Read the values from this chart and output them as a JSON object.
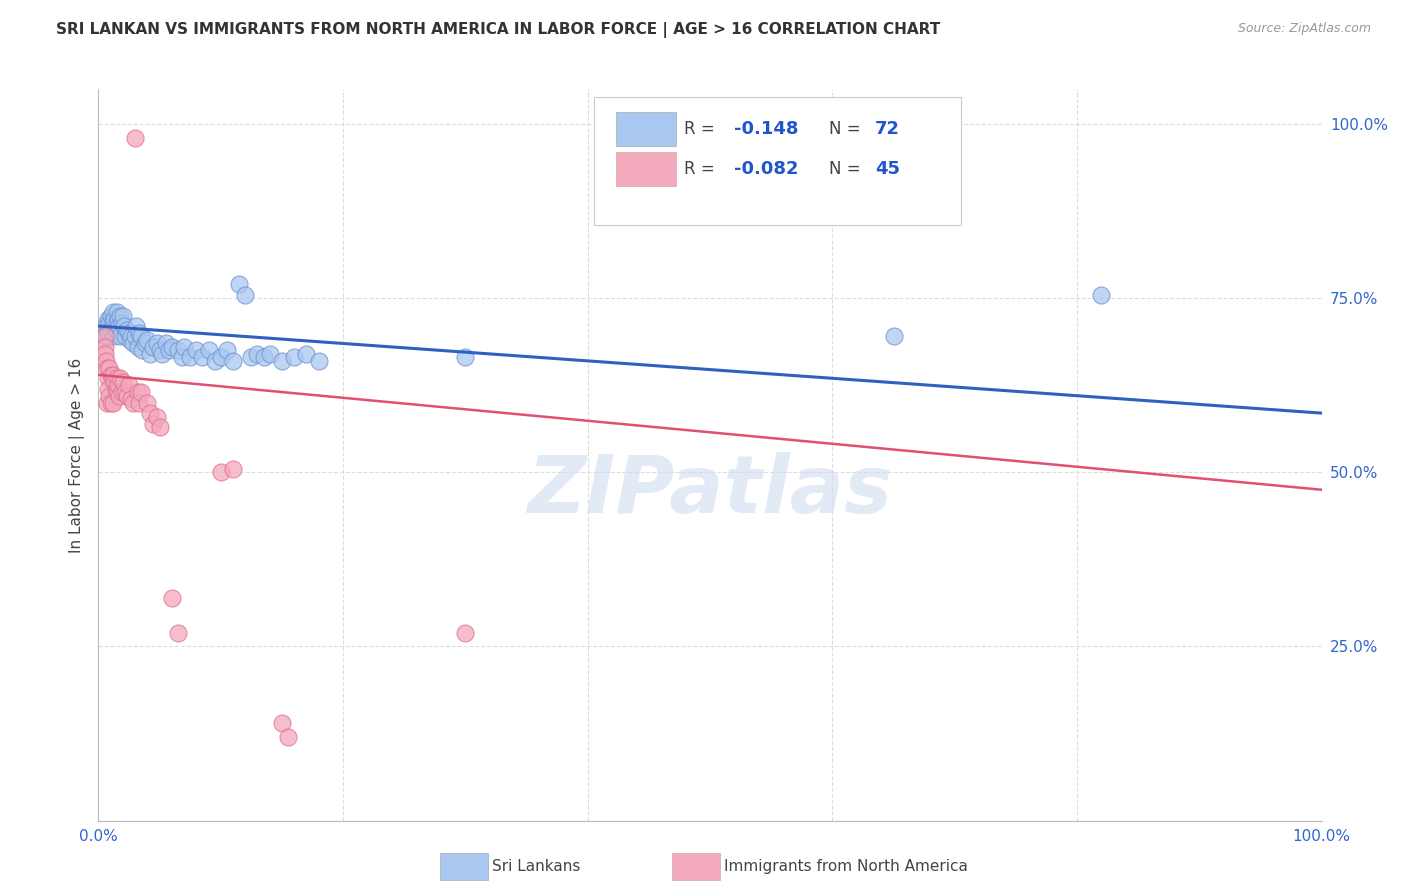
{
  "title": "SRI LANKAN VS IMMIGRANTS FROM NORTH AMERICA IN LABOR FORCE | AGE > 16 CORRELATION CHART",
  "source": "Source: ZipAtlas.com",
  "ylabel": "In Labor Force | Age > 16",
  "legend_blue_R": "-0.148",
  "legend_blue_N": "72",
  "legend_pink_R": "-0.082",
  "legend_pink_N": "45",
  "legend_label_blue": "Sri Lankans",
  "legend_label_pink": "Immigrants from North America",
  "blue_color": "#A8C8F0",
  "pink_color": "#F4A8BC",
  "blue_edge_color": "#7090D0",
  "pink_edge_color": "#E07090",
  "blue_line_color": "#3060C0",
  "pink_line_color": "#E05070",
  "watermark": "ZIPatlas",
  "blue_scatter": [
    [
      0.005,
      0.69
    ],
    [
      0.006,
      0.7
    ],
    [
      0.007,
      0.715
    ],
    [
      0.007,
      0.695
    ],
    [
      0.008,
      0.72
    ],
    [
      0.008,
      0.705
    ],
    [
      0.009,
      0.715
    ],
    [
      0.009,
      0.7
    ],
    [
      0.01,
      0.725
    ],
    [
      0.01,
      0.705
    ],
    [
      0.011,
      0.715
    ],
    [
      0.012,
      0.73
    ],
    [
      0.012,
      0.71
    ],
    [
      0.013,
      0.72
    ],
    [
      0.013,
      0.695
    ],
    [
      0.014,
      0.705
    ],
    [
      0.015,
      0.73
    ],
    [
      0.015,
      0.715
    ],
    [
      0.016,
      0.72
    ],
    [
      0.016,
      0.705
    ],
    [
      0.017,
      0.71
    ],
    [
      0.018,
      0.725
    ],
    [
      0.018,
      0.695
    ],
    [
      0.019,
      0.715
    ],
    [
      0.02,
      0.725
    ],
    [
      0.021,
      0.71
    ],
    [
      0.022,
      0.695
    ],
    [
      0.023,
      0.705
    ],
    [
      0.025,
      0.7
    ],
    [
      0.026,
      0.69
    ],
    [
      0.027,
      0.695
    ],
    [
      0.028,
      0.685
    ],
    [
      0.03,
      0.695
    ],
    [
      0.031,
      0.71
    ],
    [
      0.032,
      0.68
    ],
    [
      0.033,
      0.7
    ],
    [
      0.035,
      0.695
    ],
    [
      0.036,
      0.675
    ],
    [
      0.038,
      0.685
    ],
    [
      0.04,
      0.69
    ],
    [
      0.042,
      0.67
    ],
    [
      0.045,
      0.68
    ],
    [
      0.048,
      0.685
    ],
    [
      0.05,
      0.675
    ],
    [
      0.052,
      0.67
    ],
    [
      0.055,
      0.685
    ],
    [
      0.058,
      0.675
    ],
    [
      0.06,
      0.68
    ],
    [
      0.065,
      0.675
    ],
    [
      0.068,
      0.665
    ],
    [
      0.07,
      0.68
    ],
    [
      0.075,
      0.665
    ],
    [
      0.08,
      0.675
    ],
    [
      0.085,
      0.665
    ],
    [
      0.09,
      0.675
    ],
    [
      0.095,
      0.66
    ],
    [
      0.1,
      0.665
    ],
    [
      0.105,
      0.675
    ],
    [
      0.11,
      0.66
    ],
    [
      0.115,
      0.77
    ],
    [
      0.12,
      0.755
    ],
    [
      0.125,
      0.665
    ],
    [
      0.13,
      0.67
    ],
    [
      0.135,
      0.665
    ],
    [
      0.14,
      0.67
    ],
    [
      0.15,
      0.66
    ],
    [
      0.16,
      0.665
    ],
    [
      0.17,
      0.67
    ],
    [
      0.18,
      0.66
    ],
    [
      0.3,
      0.665
    ],
    [
      0.65,
      0.695
    ],
    [
      0.82,
      0.755
    ]
  ],
  "pink_scatter": [
    [
      0.005,
      0.695
    ],
    [
      0.005,
      0.68
    ],
    [
      0.005,
      0.67
    ],
    [
      0.006,
      0.66
    ],
    [
      0.007,
      0.65
    ],
    [
      0.007,
      0.6
    ],
    [
      0.008,
      0.635
    ],
    [
      0.008,
      0.62
    ],
    [
      0.009,
      0.65
    ],
    [
      0.009,
      0.61
    ],
    [
      0.01,
      0.64
    ],
    [
      0.01,
      0.6
    ],
    [
      0.011,
      0.635
    ],
    [
      0.012,
      0.64
    ],
    [
      0.012,
      0.6
    ],
    [
      0.013,
      0.63
    ],
    [
      0.014,
      0.62
    ],
    [
      0.015,
      0.635
    ],
    [
      0.015,
      0.615
    ],
    [
      0.016,
      0.625
    ],
    [
      0.017,
      0.61
    ],
    [
      0.018,
      0.635
    ],
    [
      0.019,
      0.615
    ],
    [
      0.02,
      0.63
    ],
    [
      0.022,
      0.615
    ],
    [
      0.023,
      0.61
    ],
    [
      0.025,
      0.625
    ],
    [
      0.027,
      0.605
    ],
    [
      0.028,
      0.6
    ],
    [
      0.03,
      0.98
    ],
    [
      0.032,
      0.615
    ],
    [
      0.033,
      0.6
    ],
    [
      0.035,
      0.615
    ],
    [
      0.04,
      0.6
    ],
    [
      0.042,
      0.585
    ],
    [
      0.045,
      0.57
    ],
    [
      0.048,
      0.58
    ],
    [
      0.05,
      0.565
    ],
    [
      0.06,
      0.32
    ],
    [
      0.065,
      0.27
    ],
    [
      0.1,
      0.5
    ],
    [
      0.11,
      0.505
    ],
    [
      0.15,
      0.14
    ],
    [
      0.155,
      0.12
    ],
    [
      0.3,
      0.27
    ]
  ],
  "blue_trend": [
    0.0,
    0.71,
    1.0,
    0.585
  ],
  "pink_trend": [
    0.0,
    0.64,
    1.0,
    0.475
  ],
  "xlim": [
    0.0,
    1.0
  ],
  "ylim": [
    0.0,
    1.05
  ],
  "ytick_positions": [
    0.0,
    0.25,
    0.5,
    0.75,
    1.0
  ],
  "ytick_labels_right": [
    "",
    "25.0%",
    "50.0%",
    "75.0%",
    "100.0%"
  ],
  "xtick_positions": [
    0.0,
    0.2,
    0.4,
    0.6,
    0.8,
    1.0
  ],
  "xtick_labels": [
    "0.0%",
    "",
    "",
    "",
    "",
    "100.0%"
  ],
  "background_color": "#FFFFFF",
  "grid_color": "#DDDDDD",
  "axis_color": "#BBBBBB",
  "tick_label_color": "#3366CC",
  "text_color": "#444444",
  "title_color": "#333333",
  "source_color": "#999999",
  "watermark_color": "#D0DCF0"
}
